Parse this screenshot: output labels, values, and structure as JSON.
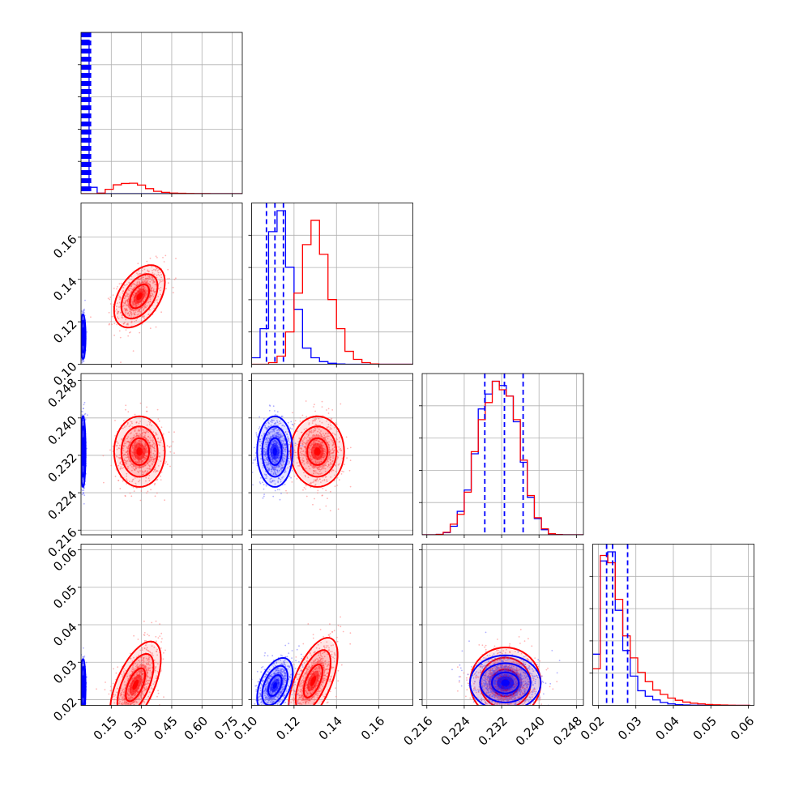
{
  "chart_data": {
    "type": "corner",
    "grid": true,
    "series": [
      {
        "name": "",
        "color": "#0000ff"
      },
      {
        "name": "",
        "color": "#ff0000"
      }
    ],
    "parameters": [
      {
        "range": [
          0.0,
          0.8
        ],
        "ticks": [
          0.15,
          0.3,
          0.45,
          0.6,
          0.75
        ],
        "tick_labels": [
          "0.15",
          "0.30",
          "0.45",
          "0.60",
          "0.75"
        ]
      },
      {
        "range": [
          0.1,
          0.176
        ],
        "ticks": [
          0.1,
          0.12,
          0.14,
          0.16
        ],
        "tick_labels": [
          "0.10",
          "0.12",
          "0.14",
          "0.16"
        ]
      },
      {
        "range": [
          0.215,
          0.2495
        ],
        "ticks": [
          0.216,
          0.224,
          0.232,
          0.24,
          0.248
        ],
        "tick_labels": [
          "0.216",
          "0.224",
          "0.232",
          "0.240",
          "0.248"
        ]
      },
      {
        "range": [
          0.0185,
          0.0615
        ],
        "ticks": [
          0.02,
          0.03,
          0.04,
          0.05,
          0.06
        ],
        "tick_labels": [
          "0.02",
          "0.03",
          "0.04",
          "0.05",
          "0.06"
        ]
      }
    ],
    "quantile_lines": {
      "color": "#0000ff",
      "p0": [
        0.005,
        0.011,
        0.013,
        0.016,
        0.018,
        0.021,
        0.024,
        0.027,
        0.03,
        0.033,
        0.036,
        0.039,
        0.042,
        0.045,
        0.047
      ],
      "p1": [
        0.107,
        0.111,
        0.115
      ],
      "p2": [
        0.2284,
        0.2326,
        0.2366
      ],
      "p3": [
        0.0222,
        0.0238,
        0.0278
      ]
    },
    "histograms": {
      "p0": {
        "edges": [
          0.0,
          0.04,
          0.08,
          0.12,
          0.16,
          0.2,
          0.24,
          0.28,
          0.32,
          0.36,
          0.4,
          0.44,
          0.48,
          0.52,
          0.56,
          0.6,
          0.64,
          0.68,
          0.72,
          0.76,
          0.8
        ],
        "blue": [
          46000,
          1900,
          150,
          0,
          0,
          0,
          0,
          0,
          0,
          0,
          0,
          0,
          0,
          0,
          0,
          0,
          0,
          0,
          0,
          0
        ],
        "red": [
          0,
          0,
          150,
          1300,
          2650,
          3050,
          3120,
          2580,
          1500,
          700,
          380,
          190,
          110,
          60,
          35,
          18,
          8,
          4,
          2,
          1
        ]
      },
      "p1": {
        "edges": [
          0.1,
          0.104,
          0.108,
          0.112,
          0.116,
          0.12,
          0.124,
          0.128,
          0.132,
          0.136,
          0.14,
          0.144,
          0.148,
          0.152,
          0.156,
          0.16,
          0.164,
          0.168,
          0.172,
          0.176
        ],
        "blue": [
          200,
          1100,
          4100,
          4750,
          3000,
          1700,
          500,
          200,
          80,
          30,
          10,
          0,
          0,
          0,
          0,
          0,
          0,
          0,
          0
        ],
        "red": [
          0,
          0,
          50,
          250,
          1000,
          2200,
          3700,
          4450,
          3400,
          2000,
          1100,
          400,
          150,
          50,
          10,
          0,
          0,
          0,
          0
        ]
      },
      "p2": {
        "edges": [
          0.215,
          0.2165,
          0.218,
          0.2195,
          0.221,
          0.2225,
          0.224,
          0.2255,
          0.227,
          0.2285,
          0.23,
          0.2315,
          0.233,
          0.2345,
          0.236,
          0.2375,
          0.239,
          0.2405,
          0.242,
          0.2435,
          0.245,
          0.2465,
          0.248,
          0.2495
        ],
        "blue": [
          0,
          0,
          10,
          50,
          200,
          550,
          1050,
          1900,
          2950,
          3300,
          3600,
          3500,
          3250,
          2650,
          1700,
          880,
          380,
          120,
          20,
          5,
          0,
          0,
          0
        ],
        "red": [
          0,
          0,
          10,
          60,
          250,
          480,
          1000,
          1950,
          2700,
          3100,
          3600,
          3400,
          3250,
          2700,
          1750,
          920,
          400,
          140,
          25,
          5,
          0,
          0,
          0
        ]
      },
      "p3": {
        "edges": [
          0.0185,
          0.0205,
          0.0225,
          0.0245,
          0.0265,
          0.0285,
          0.0305,
          0.0325,
          0.0345,
          0.0365,
          0.0385,
          0.0405,
          0.0425,
          0.0445,
          0.0465,
          0.0485,
          0.0505,
          0.0525,
          0.0545,
          0.0565,
          0.0585,
          0.0605
        ],
        "blue": [
          1400,
          3950,
          4200,
          2600,
          1500,
          800,
          400,
          250,
          150,
          80,
          40,
          20,
          10,
          5,
          2,
          1,
          0,
          0,
          0,
          0,
          0
        ],
        "red": [
          1000,
          4100,
          3900,
          2900,
          1900,
          1300,
          900,
          650,
          420,
          300,
          200,
          140,
          90,
          60,
          40,
          25,
          15,
          10,
          5,
          2,
          1
        ]
      }
    },
    "scatter_2d": {
      "p1_vs_p0": {
        "blue": {
          "mean": [
            0.01,
            0.113
          ],
          "sd": [
            0.006,
            0.005
          ],
          "corr": 0.0
        },
        "red": {
          "mean": [
            0.29,
            0.132
          ],
          "sd": [
            0.06,
            0.007
          ],
          "corr": 0.45
        }
      },
      "p2_vs_p0": {
        "blue": {
          "mean": [
            0.01,
            0.2328
          ],
          "sd": [
            0.006,
            0.0036
          ],
          "corr": 0.0
        },
        "red": {
          "mean": [
            0.29,
            0.2328
          ],
          "sd": [
            0.06,
            0.0036
          ],
          "corr": 0.0
        }
      },
      "p2_vs_p1": {
        "blue": {
          "mean": [
            0.111,
            0.2328
          ],
          "sd": [
            0.004,
            0.0036
          ],
          "corr": 0.0
        },
        "red": {
          "mean": [
            0.131,
            0.2328
          ],
          "sd": [
            0.006,
            0.0036
          ],
          "corr": 0.0
        }
      },
      "p3_vs_p0": {
        "blue": {
          "mean": [
            0.01,
            0.0235
          ],
          "sd": [
            0.006,
            0.0035
          ],
          "corr": 0.0
        },
        "red": {
          "mean": [
            0.27,
            0.024
          ],
          "sd": [
            0.06,
            0.0055
          ],
          "corr": 0.6
        }
      },
      "p3_vs_p1": {
        "blue": {
          "mean": [
            0.111,
            0.0238
          ],
          "sd": [
            0.004,
            0.0035
          ],
          "corr": 0.45
        },
        "red": {
          "mean": [
            0.129,
            0.025
          ],
          "sd": [
            0.0055,
            0.0055
          ],
          "corr": 0.6
        }
      },
      "p3_vs_p2": {
        "blue": {
          "mean": [
            0.2328,
            0.0245
          ],
          "sd": [
            0.0036,
            0.0035
          ],
          "corr": 0.0
        },
        "red": {
          "mean": [
            0.2328,
            0.0245
          ],
          "sd": [
            0.0036,
            0.0045
          ],
          "corr": 0.0
        }
      }
    }
  }
}
